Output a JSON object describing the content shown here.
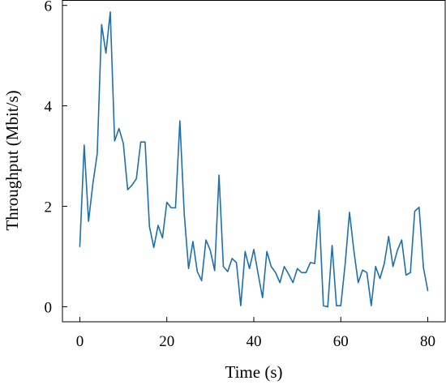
{
  "chart_data": {
    "type": "line",
    "title": "",
    "xlabel": "Time (s)",
    "ylabel": "Throughput (Mbit/s)",
    "xlim": [
      -4,
      84
    ],
    "ylim": [
      -0.3,
      6.1
    ],
    "xticks": [
      0,
      20,
      40,
      60,
      80
    ],
    "yticks": [
      0,
      2,
      4,
      6
    ],
    "xtick_labels": [
      "0",
      "20",
      "40",
      "60",
      "80"
    ],
    "ytick_labels": [
      "0",
      "2",
      "4",
      "6"
    ],
    "grid": false,
    "legend": "none",
    "line_color": "#1f6fa8",
    "series": [
      {
        "x": [
          0,
          1,
          2,
          3,
          4,
          5,
          6,
          7,
          8,
          9,
          10,
          11,
          12,
          13,
          14,
          15,
          16,
          17,
          18,
          19,
          20,
          21,
          22,
          23,
          24,
          25,
          26,
          27,
          28,
          29,
          30,
          31,
          32,
          33,
          34,
          35,
          36,
          37,
          38,
          39,
          40,
          41,
          42,
          43,
          44,
          45,
          46,
          47,
          48,
          49,
          50,
          51,
          52,
          53,
          54,
          55,
          56,
          57,
          58,
          59,
          60,
          61,
          62,
          63,
          64,
          65,
          66,
          67,
          68,
          69,
          70,
          71,
          72,
          73,
          74,
          75,
          76,
          77,
          78,
          79,
          80
        ],
        "y": [
          1.2,
          3.22,
          1.7,
          2.45,
          3.05,
          5.62,
          5.05,
          5.87,
          3.3,
          3.55,
          3.25,
          2.33,
          2.42,
          2.55,
          3.28,
          3.28,
          1.6,
          1.18,
          1.62,
          1.37,
          2.08,
          1.97,
          1.97,
          3.7,
          1.85,
          0.76,
          1.3,
          0.7,
          0.52,
          1.33,
          1.12,
          0.72,
          2.62,
          0.8,
          0.7,
          0.96,
          0.88,
          0.02,
          1.1,
          0.76,
          1.14,
          0.65,
          0.18,
          1.1,
          0.8,
          0.68,
          0.48,
          0.8,
          0.65,
          0.48,
          0.76,
          0.68,
          0.68,
          0.88,
          0.86,
          1.92,
          0.02,
          0.0,
          1.22,
          0.02,
          0.02,
          0.85,
          1.88,
          1.12,
          0.48,
          0.73,
          0.68,
          0.02,
          0.8,
          0.56,
          0.86,
          1.4,
          0.8,
          1.12,
          1.33,
          0.63,
          0.68,
          1.9,
          1.98,
          0.78,
          0.32
        ]
      }
    ]
  }
}
